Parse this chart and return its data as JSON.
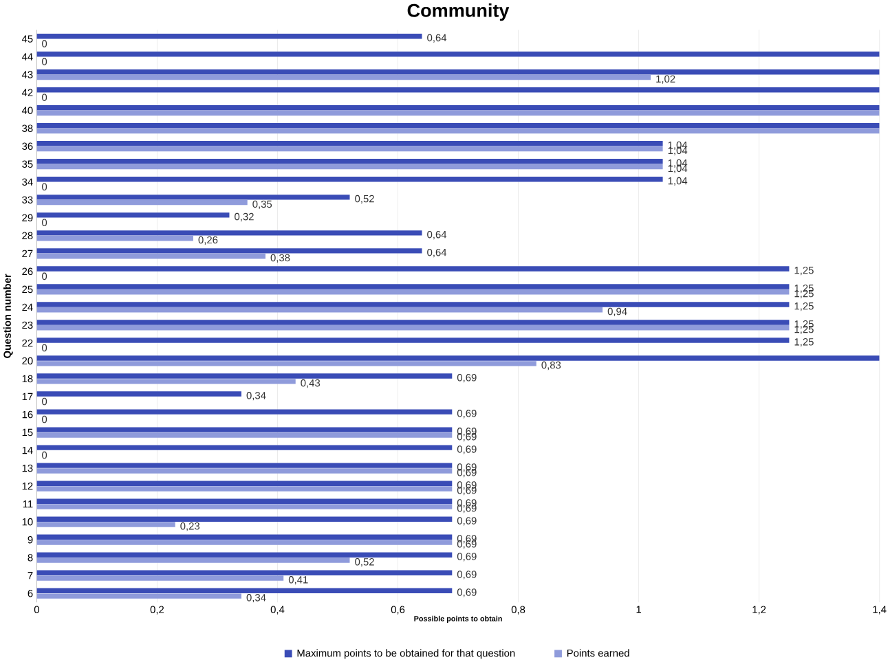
{
  "chart_data": {
    "type": "bar",
    "orientation": "horizontal",
    "title": "Community",
    "xlabel": "Possible points to obtain",
    "ylabel": "Question number",
    "categories": [
      "45",
      "44",
      "43",
      "42",
      "40",
      "38",
      "36",
      "35",
      "34",
      "33",
      "29",
      "28",
      "27",
      "26",
      "25",
      "24",
      "23",
      "22",
      "20",
      "18",
      "17",
      "16",
      "15",
      "14",
      "13",
      "12",
      "11",
      "10",
      "9",
      "8",
      "7",
      "6"
    ],
    "series": [
      {
        "name": "Maximum points to be obtained for that question",
        "color": "#3a4cb6",
        "values": [
          0.64,
          1.4,
          1.4,
          1.4,
          1.4,
          1.4,
          1.04,
          1.04,
          1.04,
          0.52,
          0.32,
          0.64,
          0.64,
          1.25,
          1.25,
          1.25,
          1.25,
          1.25,
          1.4,
          0.69,
          0.34,
          0.69,
          0.69,
          0.69,
          0.69,
          0.69,
          0.69,
          0.69,
          0.69,
          0.69,
          0.69,
          0.69
        ],
        "value_labels": [
          "0,64",
          null,
          null,
          null,
          null,
          null,
          "1,04",
          "1,04",
          "1,04",
          "0,52",
          "0,32",
          "0,64",
          "0,64",
          "1,25",
          "1,25",
          "1,25",
          "1,25",
          "1,25",
          null,
          "0,69",
          "0,34",
          "0,69",
          "0,69",
          "0,69",
          "0,69",
          "0,69",
          "0,69",
          "0,69",
          "0,69",
          "0,69",
          "0,69",
          "0,69"
        ]
      },
      {
        "name": "Points earned",
        "color": "#8f9bdb",
        "values": [
          0,
          0,
          1.02,
          0,
          1.4,
          1.4,
          1.04,
          1.04,
          0,
          0.35,
          0,
          0.26,
          0.38,
          0,
          1.25,
          0.94,
          1.25,
          0,
          0.83,
          0.43,
          0,
          0,
          0.69,
          0,
          0.69,
          0.69,
          0.69,
          0.23,
          0.69,
          0.52,
          0.41,
          0.34
        ],
        "value_labels": [
          "0",
          "0",
          "1,02",
          "0",
          null,
          null,
          "1,04",
          "1,04",
          "0",
          "0,35",
          "0",
          "0,26",
          "0,38",
          "0",
          "1,25",
          "0,94",
          "1,25",
          "0",
          "0,83",
          "0,43",
          "0",
          "0",
          "0,69",
          "0",
          "0,69",
          "0,69",
          "0,69",
          "0,23",
          "0,69",
          "0,52",
          "0,41",
          "0,34"
        ]
      }
    ],
    "xlim": [
      0,
      1.4
    ],
    "xticks": [
      0,
      {
        "value": 0.2,
        "label": "0,2"
      },
      {
        "value": 0.4,
        "label": "0,4"
      },
      {
        "value": 0.6,
        "label": "0,6"
      },
      {
        "value": 0.8,
        "label": "0,8"
      },
      1,
      {
        "value": 1.2,
        "label": "1,2"
      },
      {
        "value": 1.4,
        "label": "1,4"
      }
    ],
    "grid": "x",
    "legend": "bottom"
  }
}
